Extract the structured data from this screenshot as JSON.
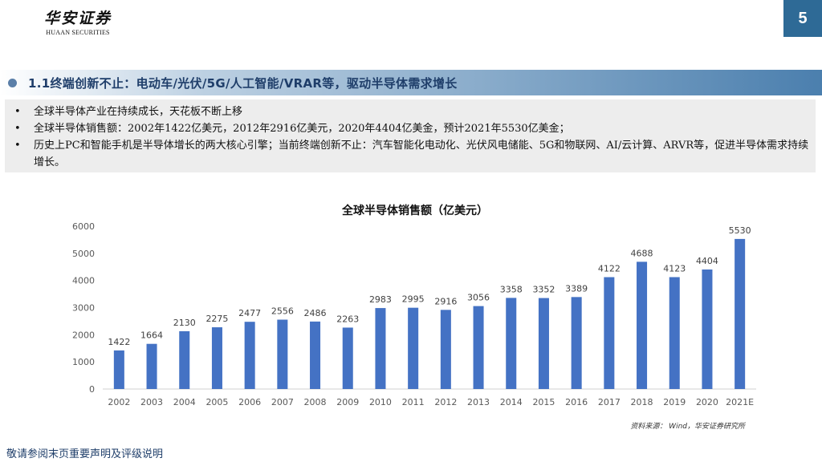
{
  "logo": {
    "cn": "华安证券",
    "en": "HUAAN SECURITIES"
  },
  "page_number": "5",
  "section": {
    "title": "1.1终端创新不止：电动车/光伏/5G/人工智能/VRAR等，驱动半导体需求增长"
  },
  "points": [
    "全球半导体产业在持续成长，天花板不断上移",
    "全球半导体销售额：2002年1422亿美元，2012年2916亿美元，2020年4404亿美金，预计2021年5530亿美金；",
    "历史上PC和智能手机是半导体增长的两大核心引擎；当前终端创新不止：汽车智能化电动化、光伏风电储能、5G和物联网、AI/云计算、ARVR等，促进半导体需求持续增长。"
  ],
  "chart_data": {
    "type": "bar",
    "title": "全球半导体销售额（亿美元）",
    "categories": [
      "2002",
      "2003",
      "2004",
      "2005",
      "2006",
      "2007",
      "2008",
      "2009",
      "2010",
      "2011",
      "2012",
      "2013",
      "2014",
      "2015",
      "2016",
      "2017",
      "2018",
      "2019",
      "2020",
      "2021E"
    ],
    "values": [
      1422,
      1664,
      2130,
      2275,
      2477,
      2556,
      2486,
      2263,
      2983,
      2995,
      2916,
      3056,
      3358,
      3352,
      3389,
      4122,
      4688,
      4123,
      4404,
      5530
    ],
    "y_ticks": [
      0,
      1000,
      2000,
      3000,
      4000,
      5000,
      6000
    ],
    "ylim": [
      0,
      6000
    ],
    "xlabel": "",
    "ylabel": "",
    "grid": false,
    "bar_color": "#4472c4"
  },
  "source": "资料来源： Wind，华安证券研究所",
  "footer": "敬请参阅末页重要声明及评级说明"
}
